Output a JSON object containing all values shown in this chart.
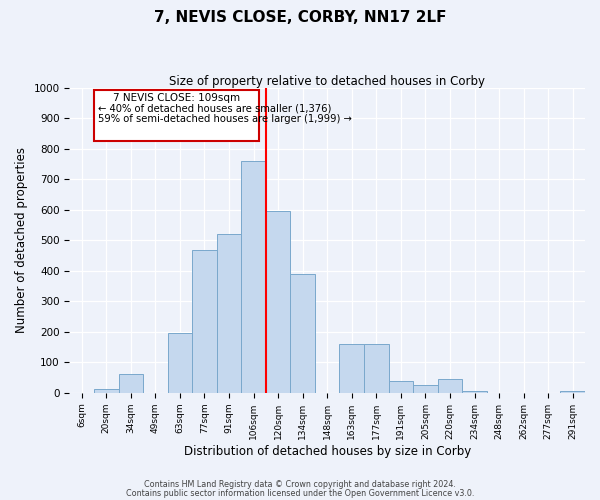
{
  "title": "7, NEVIS CLOSE, CORBY, NN17 2LF",
  "subtitle": "Size of property relative to detached houses in Corby",
  "xlabel": "Distribution of detached houses by size in Corby",
  "ylabel": "Number of detached properties",
  "bar_labels": [
    "6sqm",
    "20sqm",
    "34sqm",
    "49sqm",
    "63sqm",
    "77sqm",
    "91sqm",
    "106sqm",
    "120sqm",
    "134sqm",
    "148sqm",
    "163sqm",
    "177sqm",
    "191sqm",
    "205sqm",
    "220sqm",
    "234sqm",
    "248sqm",
    "262sqm",
    "277sqm",
    "291sqm"
  ],
  "bar_heights": [
    0,
    12,
    63,
    0,
    195,
    470,
    520,
    760,
    595,
    390,
    0,
    160,
    160,
    40,
    25,
    45,
    5,
    0,
    0,
    0,
    5
  ],
  "bar_color": "#c5d8ee",
  "bar_edge_color": "#7aa8cc",
  "vline_label": "7 NEVIS CLOSE: 109sqm",
  "annotation_line1": "← 40% of detached houses are smaller (1,376)",
  "annotation_line2": "59% of semi-detached houses are larger (1,999) →",
  "box_color": "#cc0000",
  "ylim": [
    0,
    1000
  ],
  "yticks": [
    0,
    100,
    200,
    300,
    400,
    500,
    600,
    700,
    800,
    900,
    1000
  ],
  "footer1": "Contains HM Land Registry data © Crown copyright and database right 2024.",
  "footer2": "Contains public sector information licensed under the Open Government Licence v3.0.",
  "bg_color": "#eef2fa",
  "plot_bg_color": "#eef2fa"
}
